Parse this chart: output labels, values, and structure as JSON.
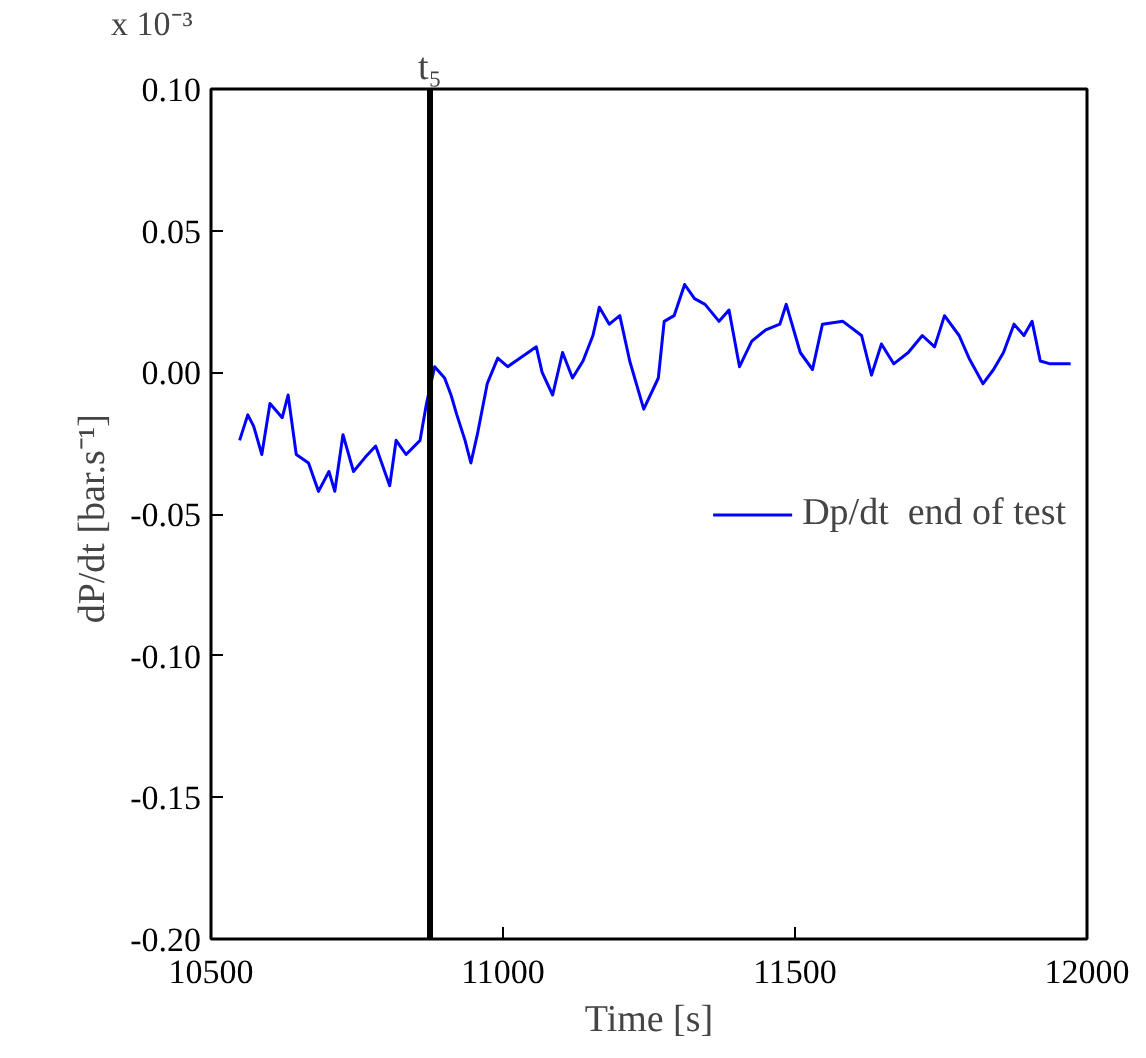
{
  "chart_data": {
    "type": "line",
    "xlabel": "Time [s]",
    "ylabel": "dP/dt  [bar.s⁻¹]",
    "annotations": [
      "x 10⁻³"
    ],
    "xlim": [
      10500,
      12000
    ],
    "xticks": [
      10500,
      11000,
      11500,
      12000
    ],
    "ylim": [
      -0.2,
      0.1
    ],
    "yticks": [
      {
        "value": -0.2,
        "label": "-0.20"
      },
      {
        "value": -0.15,
        "label": "-0.15"
      },
      {
        "value": -0.1,
        "label": "-0.10"
      },
      {
        "value": -0.05,
        "label": "-0.05"
      },
      {
        "value": 0,
        "label": "0.00"
      },
      {
        "value": 0.05,
        "label": "0.05"
      },
      {
        "value": 0.1,
        "label": "0.10"
      }
    ],
    "ref_lines": [
      {
        "axis": "x",
        "value": 10875,
        "label": "t₅",
        "color": "#000000"
      }
    ],
    "legend": "right",
    "grid": false,
    "series": [
      {
        "name": "Dp/dt  end of test",
        "color": "#0000ff",
        "x": [
          10549,
          10563,
          10573,
          10587,
          10601,
          10622,
          10632,
          10646,
          10667,
          10684,
          10702,
          10712,
          10726,
          10744,
          10764,
          10782,
          10806,
          10817,
          10834,
          10858,
          10869,
          10883,
          10900,
          10911,
          10921,
          10935,
          10945,
          10956,
          10973,
          10991,
          11008,
          11022,
          11043,
          11057,
          11067,
          11085,
          11102,
          11119,
          11137,
          11154,
          11165,
          11182,
          11200,
          11217,
          11241,
          11266,
          11276,
          11293,
          11311,
          11328,
          11346,
          11370,
          11387,
          11405,
          11426,
          11450,
          11474,
          11485,
          11509,
          11530,
          11547,
          11582,
          11614,
          11631,
          11648,
          11669,
          11694,
          11718,
          11739,
          11756,
          11781,
          11798,
          11822,
          11840,
          11857,
          11875,
          11892,
          11906,
          11920,
          11937,
          11972
        ],
        "values": [
          -0.024,
          -0.015,
          -0.019,
          -0.029,
          -0.011,
          -0.016,
          -0.008,
          -0.029,
          -0.032,
          -0.042,
          -0.035,
          -0.042,
          -0.022,
          -0.035,
          -0.03,
          -0.026,
          -0.04,
          -0.024,
          -0.029,
          -0.024,
          -0.011,
          0.002,
          -0.002,
          -0.008,
          -0.015,
          -0.024,
          -0.032,
          -0.022,
          -0.004,
          0.005,
          0.002,
          0.004,
          0.007,
          0.009,
          0.0,
          -0.008,
          0.007,
          -0.002,
          0.004,
          0.013,
          0.023,
          0.017,
          0.02,
          0.004,
          -0.013,
          -0.002,
          0.018,
          0.02,
          0.031,
          0.026,
          0.024,
          0.018,
          0.022,
          0.002,
          0.011,
          0.015,
          0.017,
          0.024,
          0.007,
          0.001,
          0.017,
          0.018,
          0.013,
          -0.001,
          0.01,
          0.003,
          0.007,
          0.013,
          0.009,
          0.02,
          0.013,
          0.005,
          -0.004,
          0.001,
          0.007,
          0.017,
          0.013,
          0.018,
          0.004,
          0.003,
          0.003
        ]
      }
    ]
  }
}
